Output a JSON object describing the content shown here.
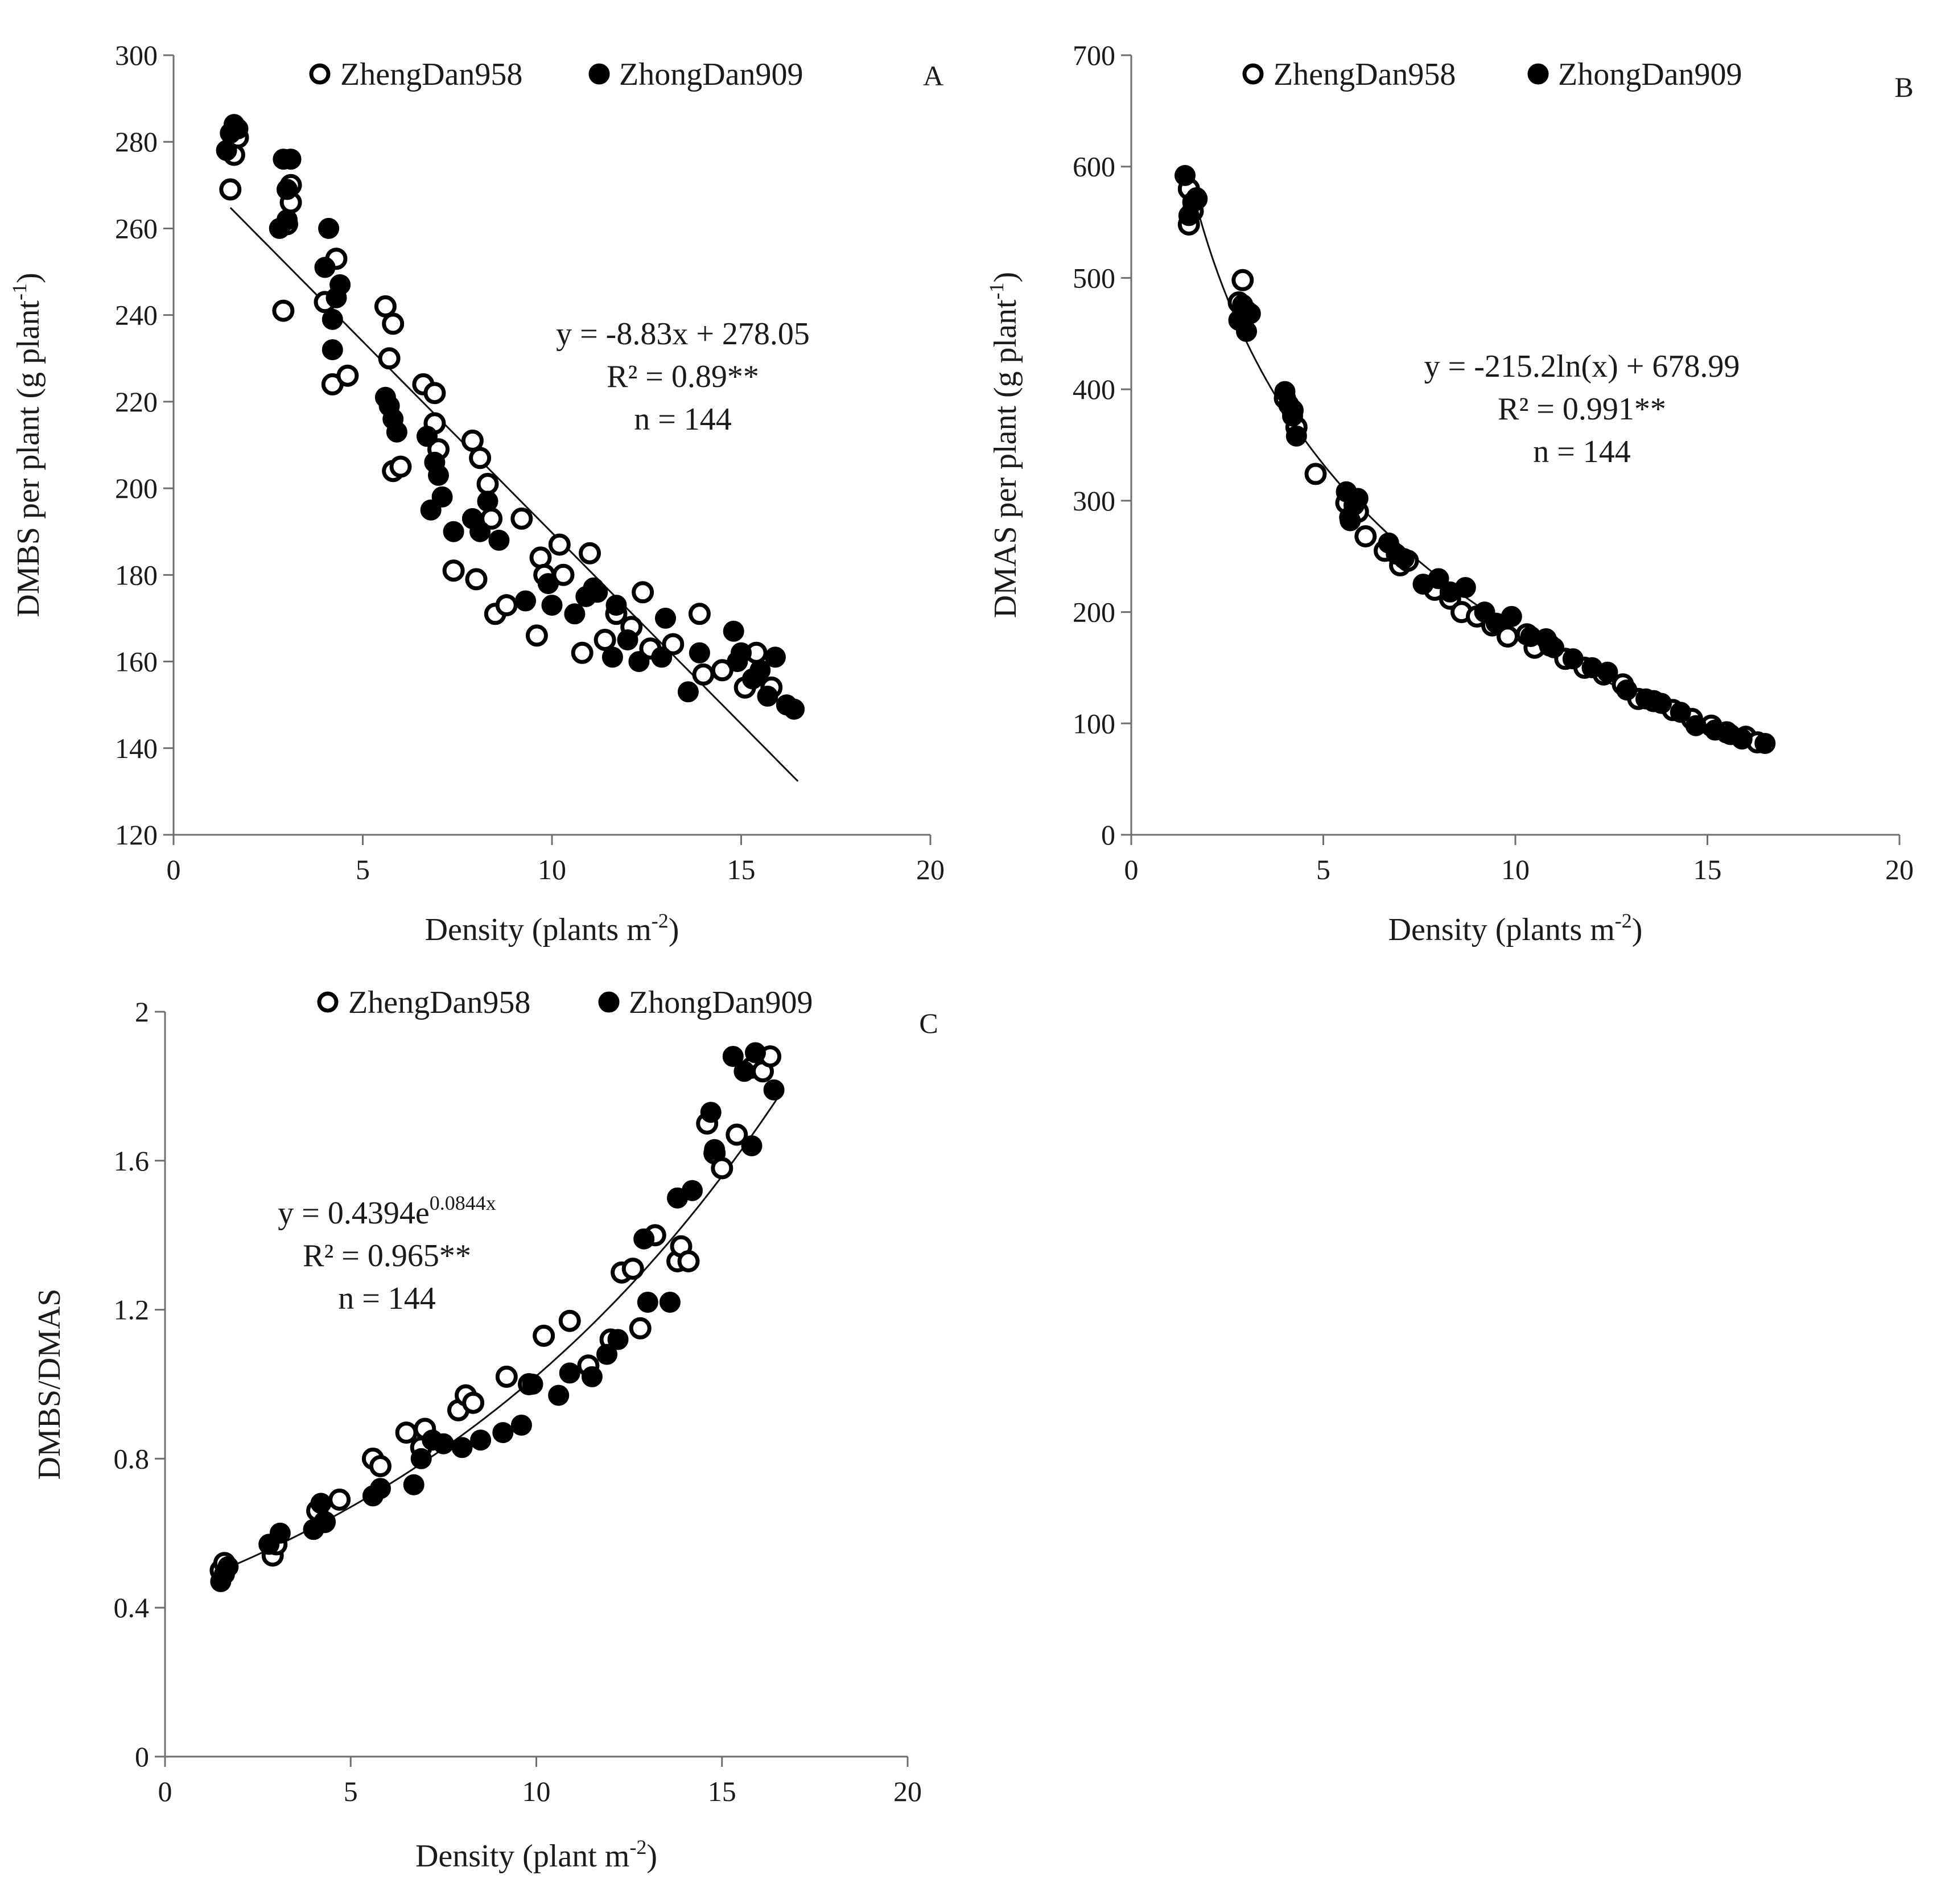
{
  "legend_labels": [
    "ZhengDan958",
    "ZhongDan909"
  ],
  "chart_data": [
    {
      "id": "A",
      "type": "scatter",
      "panel": "A",
      "xlabel": "Density (plants m-2)",
      "xlabel_parts": {
        "main": "Density (plants m",
        "sup": "-2",
        "end": ")"
      },
      "ylabel": "DMBS per plant (g plant-1)",
      "ylabel_parts": {
        "main": "DMBS per plant (g plant",
        "sup": "-1",
        "end": ")"
      },
      "xlim": [
        0,
        20
      ],
      "ylim": [
        120,
        300
      ],
      "xticks": [
        0,
        5,
        10,
        15,
        20
      ],
      "yticks": [
        120,
        140,
        160,
        180,
        200,
        220,
        240,
        260,
        280,
        300
      ],
      "equation": [
        "y = -8.83x + 278.05",
        "R² = 0.89**",
        "n = 144"
      ],
      "fit": {
        "kind": "linear",
        "a": -8.83,
        "b": 278.05,
        "x_range": [
          1.5,
          16.5
        ]
      },
      "series": [
        {
          "name": "ZhengDan958",
          "marker": "open",
          "x": [
            1.5,
            1.6,
            1.7,
            2.9,
            3.0,
            3.1,
            3.1,
            4.0,
            4.2,
            4.3,
            4.6,
            5.6,
            5.7,
            5.8,
            5.8,
            6.0,
            6.6,
            6.9,
            6.9,
            7.0,
            7.4,
            7.9,
            8.0,
            8.1,
            8.3,
            8.4,
            8.5,
            8.8,
            9.2,
            9.6,
            9.7,
            9.8,
            10.2,
            10.3,
            10.8,
            11.0,
            11.4,
            11.7,
            12.1,
            12.4,
            12.6,
            13.2,
            13.9,
            14.0,
            14.5,
            15.1,
            15.4,
            15.8
          ],
          "y": [
            269,
            277,
            281,
            241,
            261,
            270,
            266,
            243,
            224,
            253,
            226,
            242,
            230,
            238,
            204,
            205,
            224,
            222,
            215,
            209,
            181,
            211,
            179,
            207,
            201,
            193,
            171,
            173,
            193,
            166,
            184,
            180,
            187,
            180,
            162,
            185,
            165,
            171,
            168,
            176,
            163,
            164,
            171,
            157,
            158,
            154,
            162,
            154
          ]
        },
        {
          "name": "ZhongDan909",
          "marker": "filled",
          "x": [
            1.4,
            1.6,
            1.5,
            1.7,
            2.9,
            3.0,
            3.1,
            2.8,
            3.0,
            4.1,
            4.2,
            4.2,
            4.4,
            4.3,
            4.0,
            5.6,
            5.8,
            5.7,
            5.9,
            6.7,
            6.9,
            7.0,
            7.1,
            6.8,
            7.4,
            7.9,
            8.1,
            8.3,
            8.6,
            9.3,
            9.9,
            10.0,
            10.6,
            10.9,
            11.1,
            11.2,
            11.6,
            11.7,
            12.0,
            12.3,
            12.9,
            13.0,
            13.6,
            13.9,
            14.8,
            14.9,
            15.0,
            15.3,
            15.5,
            15.7,
            15.9,
            16.2,
            16.4
          ],
          "y": [
            278,
            284,
            282,
            283,
            276,
            262,
            276,
            260,
            269,
            260,
            239,
            232,
            247,
            244,
            251,
            221,
            216,
            219,
            213,
            212,
            206,
            203,
            198,
            195,
            190,
            193,
            190,
            197,
            188,
            174,
            178,
            173,
            171,
            175,
            177,
            176,
            161,
            173,
            165,
            160,
            161,
            170,
            153,
            162,
            167,
            160,
            162,
            156,
            158,
            152,
            161,
            150,
            149
          ]
        }
      ]
    },
    {
      "id": "B",
      "type": "scatter",
      "panel": "B",
      "xlabel": "Density (plants m-2)",
      "xlabel_parts": {
        "main": "Density (plants m",
        "sup": "-2",
        "end": ")"
      },
      "ylabel": "DMAS per plant (g plant-1)",
      "ylabel_parts": {
        "main": "DMAS per plant (g plant",
        "sup": "-1",
        "end": ")"
      },
      "xlim": [
        0,
        20
      ],
      "ylim": [
        0,
        700
      ],
      "xticks": [
        0,
        5,
        10,
        15,
        20
      ],
      "yticks": [
        0,
        100,
        200,
        300,
        400,
        500,
        600,
        700
      ],
      "equation": [
        "y = -215.2ln(x) + 678.99",
        "R² = 0.991**",
        "n = 144"
      ],
      "fit": {
        "kind": "log",
        "a": -215.2,
        "b": 678.99,
        "x_range": [
          1.5,
          16.5
        ]
      },
      "series": [
        {
          "name": "ZhengDan958",
          "marker": "open",
          "x": [
            1.5,
            1.6,
            1.7,
            1.5,
            2.9,
            3.0,
            2.8,
            4.0,
            4.2,
            4.3,
            4.8,
            5.6,
            5.7,
            5.9,
            6.1,
            6.6,
            7.0,
            7.2,
            7.9,
            8.3,
            8.6,
            9.0,
            9.4,
            9.8,
            10.3,
            10.5,
            10.9,
            11.3,
            11.8,
            12.3,
            12.8,
            13.2,
            13.6,
            14.1,
            14.6,
            15.1,
            15.5,
            16.0,
            16.3
          ],
          "y": [
            548,
            560,
            571,
            580,
            498,
            470,
            478,
            392,
            381,
            366,
            324,
            298,
            285,
            290,
            268,
            255,
            242,
            246,
            220,
            212,
            200,
            196,
            188,
            178,
            180,
            168,
            170,
            158,
            150,
            144,
            135,
            122,
            120,
            112,
            104,
            98,
            92,
            88,
            83
          ]
        },
        {
          "name": "ZhongDan909",
          "marker": "filled",
          "x": [
            1.4,
            1.6,
            1.5,
            1.7,
            2.9,
            3.0,
            3.1,
            2.8,
            4.0,
            4.2,
            4.3,
            4.1,
            5.6,
            5.8,
            5.7,
            5.9,
            6.7,
            6.9,
            7.1,
            7.6,
            8.0,
            8.3,
            8.7,
            9.2,
            9.5,
            9.9,
            10.4,
            10.8,
            11.0,
            11.5,
            12.0,
            12.4,
            12.9,
            13.4,
            13.8,
            14.3,
            14.7,
            15.2,
            15.6,
            15.9,
            16.5
          ],
          "y": [
            592,
            568,
            556,
            572,
            476,
            452,
            468,
            462,
            398,
            376,
            358,
            386,
            308,
            296,
            282,
            302,
            262,
            252,
            248,
            225,
            230,
            218,
            222,
            200,
            190,
            196,
            178,
            176,
            168,
            158,
            150,
            146,
            130,
            122,
            118,
            110,
            98,
            94,
            90,
            86,
            82
          ]
        }
      ]
    },
    {
      "id": "C",
      "type": "scatter",
      "panel": "C",
      "xlabel": "Density (plant m-2)",
      "xlabel_parts": {
        "main": "Density (plant m",
        "sup": "-2",
        "end": ")"
      },
      "ylabel": "DMBS/DMAS",
      "ylabel_parts": {
        "main": "DMBS/DMAS",
        "sup": "",
        "end": ""
      },
      "xlim": [
        0,
        20
      ],
      "ylim": [
        0,
        2
      ],
      "xticks": [
        0,
        5,
        10,
        15,
        20
      ],
      "yticks": [
        0,
        0.4,
        0.8,
        1.2,
        1.6,
        2
      ],
      "equation": [
        "y = 0.4394e0.0844x",
        "R² = 0.965**",
        "n = 144"
      ],
      "equation_parts": {
        "main": "y = 0.4394e",
        "sup": "0.0844x"
      },
      "fit": {
        "kind": "exp",
        "a": 0.4394,
        "b": 0.0844,
        "x_range": [
          1.5,
          16.5
        ]
      },
      "series": [
        {
          "name": "ZhengDan958",
          "marker": "open",
          "x": [
            1.5,
            1.6,
            2.9,
            3.0,
            4.1,
            4.3,
            4.7,
            5.6,
            5.8,
            6.5,
            6.9,
            7.0,
            7.9,
            8.1,
            8.3,
            9.2,
            9.8,
            10.2,
            10.9,
            11.4,
            12.0,
            12.3,
            12.6,
            12.8,
            13.2,
            13.8,
            13.9,
            14.1,
            14.6,
            14.8,
            15.0,
            15.4,
            15.8,
            16.1,
            16.3
          ],
          "y": [
            0.5,
            0.52,
            0.54,
            0.57,
            0.66,
            0.63,
            0.69,
            0.8,
            0.78,
            0.87,
            0.83,
            0.88,
            0.93,
            0.97,
            0.95,
            1.02,
            1.0,
            1.13,
            1.17,
            1.05,
            1.12,
            1.3,
            1.31,
            1.15,
            1.4,
            1.33,
            1.37,
            1.33,
            1.7,
            1.62,
            1.58,
            1.67,
            1.85,
            1.84,
            1.88
          ]
        },
        {
          "name": "ZhongDan909",
          "marker": "filled",
          "x": [
            1.5,
            1.6,
            1.7,
            2.8,
            3.1,
            4.0,
            4.2,
            4.3,
            5.6,
            5.8,
            6.7,
            6.9,
            7.2,
            7.5,
            8.0,
            8.5,
            9.1,
            9.6,
            9.9,
            10.6,
            10.9,
            11.5,
            11.9,
            12.2,
            12.9,
            13.0,
            13.6,
            13.8,
            14.2,
            14.7,
            14.8,
            15.3,
            15.6,
            15.8,
            15.9,
            16.4
          ],
          "y": [
            0.47,
            0.49,
            0.51,
            0.57,
            0.6,
            0.61,
            0.68,
            0.63,
            0.7,
            0.72,
            0.73,
            0.8,
            0.85,
            0.84,
            0.83,
            0.85,
            0.87,
            0.89,
            1.0,
            0.97,
            1.03,
            1.02,
            1.08,
            1.12,
            1.39,
            1.22,
            1.22,
            1.5,
            1.52,
            1.73,
            1.63,
            1.88,
            1.84,
            1.64,
            1.89,
            1.79
          ]
        }
      ]
    }
  ]
}
